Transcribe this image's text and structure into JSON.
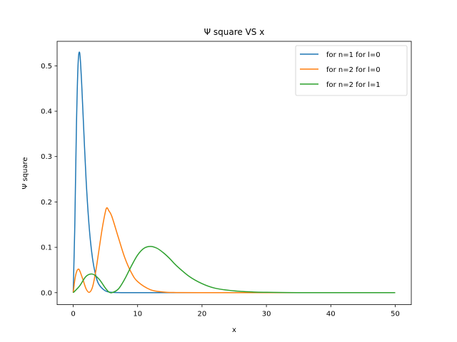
{
  "chart_data": {
    "type": "line",
    "title": "Ψ square VS x",
    "xlabel": "x",
    "ylabel": "Ψ square",
    "xlim": [
      -2.5,
      52.5
    ],
    "ylim": [
      -0.0264,
      0.554
    ],
    "xticks": [
      0,
      10,
      20,
      30,
      40,
      50
    ],
    "xtick_labels": [
      "0",
      "10",
      "20",
      "30",
      "40",
      "50"
    ],
    "yticks": [
      0.0,
      0.1,
      0.2,
      0.3,
      0.4,
      0.5
    ],
    "ytick_labels": [
      "0.0",
      "0.1",
      "0.2",
      "0.3",
      "0.4",
      "0.5"
    ],
    "grid": false,
    "legend_position": "upper-right",
    "series": [
      {
        "name": "for n=1 for l=0",
        "color": "#1f77b4",
        "x": [
          0,
          0.25,
          0.5,
          0.75,
          1.0,
          1.25,
          1.5,
          2.0,
          2.5,
          3.0,
          3.5,
          4.0,
          5.0,
          6.0,
          7.0,
          8.0,
          10.0,
          15.0,
          20.0,
          30.0,
          40.0,
          50.0
        ],
        "y": [
          0.0,
          0.152,
          0.368,
          0.502,
          0.529,
          0.478,
          0.402,
          0.249,
          0.141,
          0.075,
          0.038,
          0.018,
          0.004,
          0.0008,
          0.0002,
          0.0,
          0.0,
          0.0,
          0.0,
          0.0,
          0.0,
          0.0
        ]
      },
      {
        "name": "for n=2 for l=0",
        "color": "#ff7f0e",
        "x": [
          0,
          0.25,
          0.5,
          0.76,
          1.0,
          1.5,
          2.0,
          2.5,
          3.0,
          3.5,
          4.0,
          4.5,
          5.0,
          5.24,
          5.5,
          6.0,
          7.0,
          8.0,
          9.0,
          10.0,
          12.0,
          14.0,
          16.0,
          20.0,
          25.0,
          30.0,
          40.0,
          50.0
        ],
        "y": [
          0.0,
          0.0285,
          0.0452,
          0.0518,
          0.0487,
          0.0293,
          0.0084,
          0.0008,
          0.0127,
          0.0473,
          0.0942,
          0.1412,
          0.1786,
          0.1872,
          0.1813,
          0.168,
          0.1221,
          0.0774,
          0.0449,
          0.0245,
          0.0065,
          0.0015,
          0.0003,
          0.0,
          0.0,
          0.0,
          0.0,
          0.0
        ]
      },
      {
        "name": "for n=2 for l=1",
        "color": "#2ca02c",
        "x": [
          0,
          1.0,
          2.0,
          3.0,
          4.0,
          5.0,
          5.5,
          6.0,
          7.0,
          8.0,
          9.0,
          10.0,
          11.0,
          12.0,
          13.0,
          14.0,
          15.0,
          16.0,
          18.0,
          20.0,
          22.0,
          25.0,
          28.0,
          30.0,
          35.0,
          40.0,
          50.0
        ],
        "y": [
          0.0,
          0.015,
          0.036,
          0.041,
          0.03,
          0.01,
          0.002,
          0.0,
          0.008,
          0.03,
          0.058,
          0.083,
          0.098,
          0.102,
          0.098,
          0.088,
          0.075,
          0.06,
          0.036,
          0.02,
          0.01,
          0.004,
          0.0015,
          0.0008,
          0.0001,
          0.0,
          0.0
        ]
      }
    ]
  }
}
